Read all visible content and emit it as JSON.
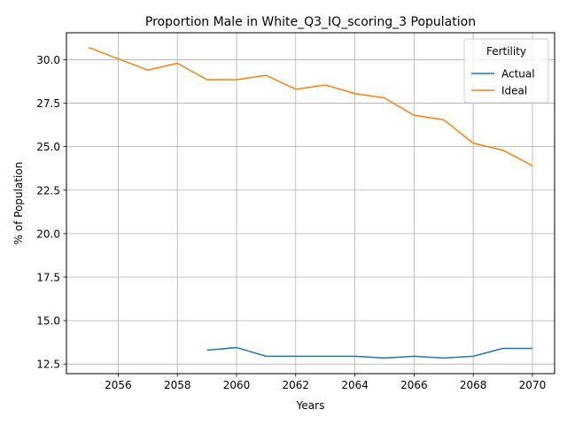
{
  "chart_data": {
    "type": "line",
    "title": "Proportion Male in White_Q3_IQ_scoring_3 Population",
    "xlabel": "Years",
    "ylabel": "% of Population",
    "xlim": [
      2054.25,
      2070.75
    ],
    "ylim": [
      11.95,
      31.55
    ],
    "xticks": [
      2056,
      2058,
      2060,
      2062,
      2064,
      2066,
      2068,
      2070
    ],
    "yticks": [
      12.5,
      15.0,
      17.5,
      20.0,
      22.5,
      25.0,
      27.5,
      30.0
    ],
    "xtick_labels": [
      "2056",
      "2058",
      "2060",
      "2062",
      "2064",
      "2066",
      "2068",
      "2070"
    ],
    "ytick_labels": [
      "12.5",
      "15.0",
      "17.5",
      "20.0",
      "22.5",
      "25.0",
      "27.5",
      "30.0"
    ],
    "grid": true,
    "legend": {
      "title": "Fertility",
      "placement": "top-right"
    },
    "series": [
      {
        "name": "Actual",
        "color": "#1f77b4",
        "x": [
          2059,
          2060,
          2061,
          2062,
          2063,
          2064,
          2065,
          2066,
          2067,
          2068,
          2069,
          2070
        ],
        "y": [
          13.3,
          13.45,
          12.95,
          12.95,
          12.95,
          12.95,
          12.85,
          12.95,
          12.85,
          12.95,
          13.4,
          13.4
        ]
      },
      {
        "name": "Ideal",
        "color": "#ff7f0e",
        "x": [
          2055,
          2056,
          2057,
          2058,
          2059,
          2060,
          2061,
          2062,
          2063,
          2064,
          2065,
          2066,
          2067,
          2068,
          2069,
          2070
        ],
        "y": [
          30.7,
          30.05,
          29.4,
          29.8,
          28.85,
          28.85,
          29.1,
          28.3,
          28.55,
          28.05,
          27.8,
          26.8,
          26.55,
          25.2,
          24.8,
          23.9
        ]
      }
    ]
  }
}
